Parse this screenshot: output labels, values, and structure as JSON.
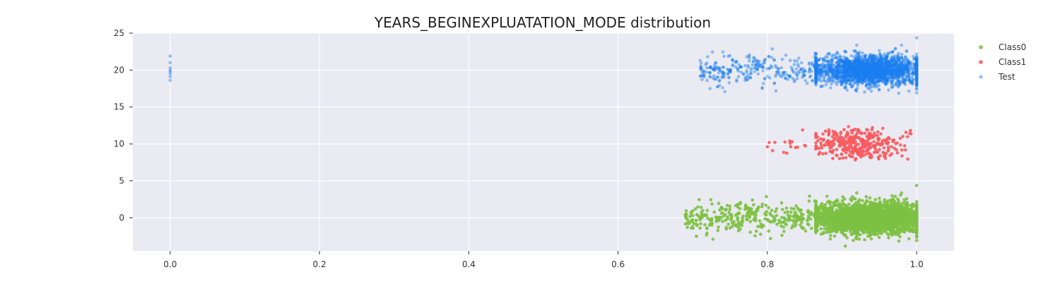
{
  "chart_data": {
    "type": "scatter",
    "title": "YEARS_BEGINEXPLUATATION_MODE distribution",
    "xlabel": "",
    "ylabel": "",
    "xlim": [
      -0.05,
      1.05
    ],
    "ylim": [
      -4.5,
      25
    ],
    "xticks": [
      0.0,
      0.2,
      0.4,
      0.6,
      0.8,
      1.0
    ],
    "xtick_labels": [
      "0.0",
      "0.2",
      "0.4",
      "0.6",
      "0.8",
      "1.0"
    ],
    "yticks": [
      0,
      5,
      10,
      15,
      20,
      25
    ],
    "ytick_labels": [
      "0",
      "5",
      "10",
      "15",
      "20",
      "25"
    ],
    "grid": true,
    "legend_position": "top-right",
    "background": "#eaeaf2",
    "series": [
      {
        "name": "Class0",
        "color": "#7dc142",
        "center_y": 0,
        "y_spread": 1.2,
        "points": 3000,
        "dense_x_range": [
          0.87,
          1.0
        ],
        "sparse_x_range": [
          0.69,
          0.87
        ],
        "outliers": [
          [
            0.69,
            0.4
          ],
          [
            0.71,
            -1.4
          ],
          [
            0.74,
            -0.5
          ],
          [
            0.76,
            0.5
          ],
          [
            0.78,
            2.4
          ],
          [
            0.79,
            -1.2
          ]
        ]
      },
      {
        "name": "Class1",
        "color": "#f85a5e",
        "center_y": 10,
        "y_spread": 1.2,
        "points": 350,
        "dense_x_range": [
          0.87,
          0.97
        ],
        "sparse_x_range": [
          0.8,
          1.0
        ],
        "outliers": [
          [
            0.8,
            9.6
          ],
          [
            0.81,
            10.2
          ],
          [
            0.83,
            10.4
          ],
          [
            0.85,
            9.8
          ]
        ]
      },
      {
        "name": "Test",
        "color": "#1a7ff0",
        "center_y": 20,
        "y_spread": 1.2,
        "points": 2500,
        "dense_x_range": [
          0.87,
          1.0
        ],
        "sparse_x_range": [
          0.71,
          0.87
        ],
        "outliers": [
          [
            0.0,
            18.6
          ],
          [
            0.0,
            19.1
          ],
          [
            0.0,
            19.5
          ],
          [
            0.0,
            19.8
          ],
          [
            0.0,
            20.0
          ],
          [
            0.0,
            20.3
          ],
          [
            0.0,
            21.0
          ],
          [
            0.0,
            21.9
          ],
          [
            0.71,
            21.3
          ],
          [
            0.72,
            21.8
          ],
          [
            0.73,
            18.8
          ],
          [
            0.74,
            17.6
          ],
          [
            0.75,
            19.8
          ],
          [
            0.76,
            20.2
          ],
          [
            0.77,
            18.6
          ],
          [
            0.78,
            20.7
          ]
        ]
      }
    ]
  }
}
